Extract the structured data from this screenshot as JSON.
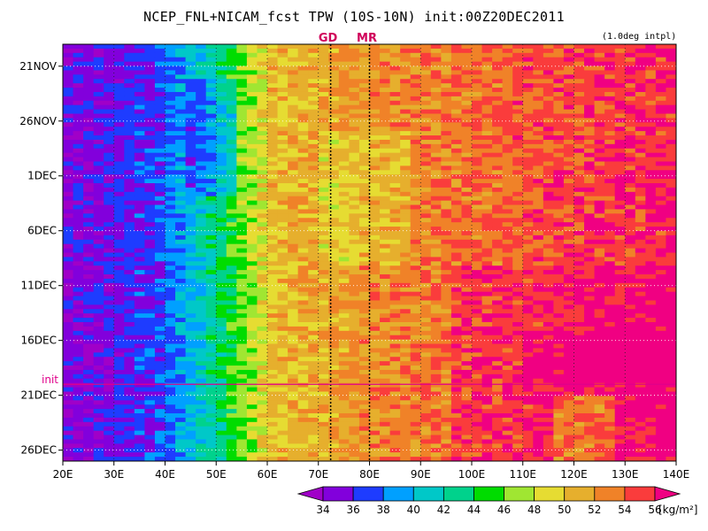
{
  "title": "NCEP_FNL+NICAM_fcst TPW (10S-10N) init:00Z20DEC2011",
  "interp_note": "(1.0deg intpl)",
  "chart_data": {
    "type": "heatmap",
    "title": "NCEP_FNL+NICAM_fcst TPW (10S-10N) init:00Z20DEC2011",
    "x_axis": {
      "unit": "longitude",
      "range": [
        20,
        140
      ],
      "ticks": [
        20,
        30,
        40,
        50,
        60,
        70,
        80,
        90,
        100,
        110,
        120,
        130,
        140
      ],
      "tick_labels": [
        "20E",
        "30E",
        "40E",
        "50E",
        "60E",
        "70E",
        "80E",
        "90E",
        "100E",
        "110E",
        "120E",
        "130E",
        "140E"
      ]
    },
    "y_axis": {
      "unit": "date",
      "direction": "time increases downward",
      "range": [
        "19NOV2011",
        "27DEC2011"
      ],
      "ticks": [
        "21NOV",
        "26NOV",
        "1DEC",
        "6DEC",
        "11DEC",
        "16DEC",
        "21DEC",
        "26DEC"
      ],
      "tick_day_offsets": [
        2,
        7,
        12,
        17,
        22,
        27,
        32,
        37
      ]
    },
    "grid": true,
    "init_line": {
      "label": "init",
      "date": "20DEC2011",
      "day_offset": 31
    },
    "markers": [
      {
        "label": "GD",
        "lon": 72.4
      },
      {
        "label": "MR",
        "lon": 80
      }
    ],
    "colorbar": {
      "unit": "[kg/m²]",
      "levels": [
        34,
        36,
        38,
        40,
        42,
        44,
        46,
        48,
        50,
        52,
        54,
        56
      ],
      "colors": [
        "#a000c8",
        "#8200dc",
        "#1e3cff",
        "#00a0ff",
        "#00c8c8",
        "#00d28c",
        "#00dc00",
        "#a0e632",
        "#e6dc32",
        "#e6af2d",
        "#f08228",
        "#fa3c3c",
        "#f00082"
      ]
    },
    "field_description": {
      "low_region": "Dry band (34-38 kg/m²) from ~20E to ~48E throughout period",
      "transition": "Sharp gradient 45E-60E",
      "moist_region": "Values 52-56+ east of ~90E, widening after 11DEC"
    }
  }
}
